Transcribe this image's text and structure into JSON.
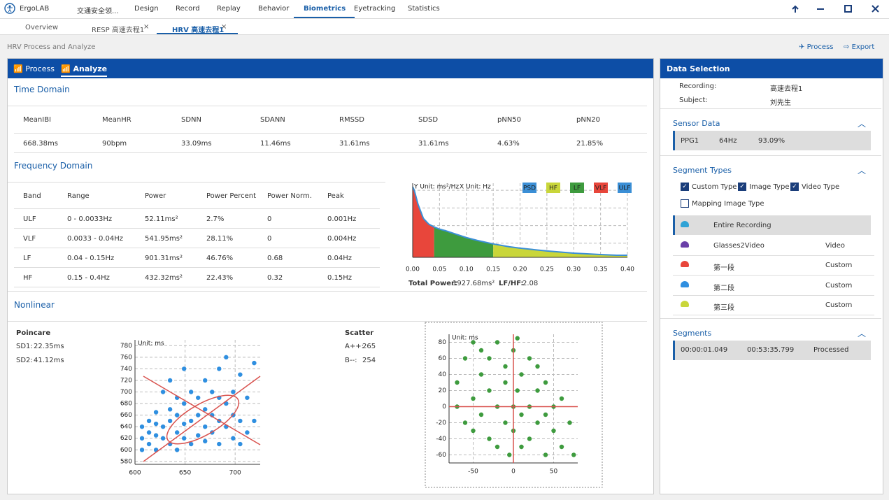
{
  "app": {
    "name": "ErgoLAB",
    "nav": [
      "交通安全领...",
      "Design",
      "Record",
      "Replay",
      "Behavior",
      "Biometrics",
      "Eyetracking",
      "Statistics"
    ],
    "active_nav": 5
  },
  "tabs": {
    "items": [
      "Overview",
      "RESP 高速去程1",
      "HRV 高速去程1"
    ],
    "active": 2
  },
  "breadcrumb": "HRV Process and Analyze",
  "actions": [
    "Process",
    "Export"
  ],
  "panel_tabs": [
    "Process",
    "Analyze"
  ],
  "time_domain": {
    "title": "Time Domain",
    "headers": [
      "MeanIBI",
      "MeanHR",
      "SDNN",
      "SDANN",
      "RMSSD",
      "SDSD",
      "pNN50",
      "pNN20"
    ],
    "values": [
      "668.38ms",
      "90bpm",
      "33.09ms",
      "11.46ms",
      "31.61ms",
      "31.61ms",
      "4.63%",
      "21.85%"
    ]
  },
  "frequency_domain": {
    "title": "Frequency Domain",
    "headers": [
      "Band",
      "Range",
      "Power",
      "Power Percent",
      "Power Norm.",
      "Peak"
    ],
    "rows": [
      [
        "ULF",
        "0 - 0.0033Hz",
        "52.11ms²",
        "2.7%",
        "0",
        "0.001Hz"
      ],
      [
        "VLF",
        "0.0033 - 0.04Hz",
        "541.95ms²",
        "28.11%",
        "0",
        "0.004Hz"
      ],
      [
        "LF",
        "0.04 - 0.15Hz",
        "901.31ms²",
        "46.76%",
        "0.68",
        "0.04Hz"
      ],
      [
        "HF",
        "0.15 - 0.4Hz",
        "432.32ms²",
        "22.43%",
        "0.32",
        "0.15Hz"
      ]
    ]
  },
  "psd_chart": {
    "type": "area",
    "y_unit": "Y Unit: ms²/Hz",
    "x_unit": "X Unit: Hz",
    "legend": [
      {
        "name": "PSD",
        "color": "#3b8fd6"
      },
      {
        "name": "HF",
        "color": "#c9d63a"
      },
      {
        "name": "LF",
        "color": "#3e9b3e"
      },
      {
        "name": "VLF",
        "color": "#e8463b"
      },
      {
        "name": "ULF",
        "color": "#3b8fd6"
      }
    ],
    "x": [
      0,
      0.003,
      0.01,
      0.02,
      0.03,
      0.04,
      0.05,
      0.06,
      0.08,
      0.1,
      0.12,
      0.15,
      0.18,
      0.2,
      0.25,
      0.3,
      0.35,
      0.38,
      0.4
    ],
    "values": [
      100,
      95,
      75,
      55,
      47,
      43,
      40,
      38,
      33,
      28,
      24,
      19,
      15,
      13,
      9,
      6,
      4,
      3,
      3
    ],
    "bands": [
      {
        "legend": 3,
        "range": [
          0,
          0.04
        ]
      },
      {
        "legend": 2,
        "range": [
          0.04,
          0.15
        ]
      },
      {
        "legend": 1,
        "range": [
          0.15,
          0.4
        ]
      }
    ],
    "xlim": [
      0,
      0.4
    ],
    "ylim": [
      0,
      105
    ],
    "xticks": [
      {
        "value": 0,
        "label": "0.00"
      },
      {
        "value": 0.05,
        "label": "0.05"
      },
      {
        "value": 0.1,
        "label": "0.10"
      },
      {
        "value": 0.15,
        "label": "0.15"
      },
      {
        "value": 0.2,
        "label": "0.20"
      },
      {
        "value": 0.25,
        "label": "0.25"
      },
      {
        "value": 0.3,
        "label": "0.30"
      },
      {
        "value": 0.35,
        "label": "0.35"
      },
      {
        "value": 0.4,
        "label": "0.40"
      }
    ],
    "grid_y": [
      20,
      45,
      70,
      95
    ],
    "total_power_label": "Total Power:",
    "total_power": "1927.68ms²",
    "lfhf_label": "LF/HF:",
    "lfhf": "2.08"
  },
  "nonlinear": {
    "title": "Nonlinear"
  },
  "poincare": {
    "type": "scatter",
    "title": "Poincare",
    "stats": [
      {
        "label": "SD1:",
        "value": "22.35ms"
      },
      {
        "label": "SD2:",
        "value": "41.12ms"
      }
    ],
    "unit": "Unit: ms",
    "color": "#2f8fe0",
    "xlim": [
      600,
      725
    ],
    "ylim": [
      575,
      790
    ],
    "xticks": [
      600,
      650,
      700
    ],
    "yticks": [
      580,
      600,
      620,
      640,
      660,
      680,
      700,
      720,
      740,
      760,
      780
    ],
    "points": [
      [
        607,
        600
      ],
      [
        607,
        620
      ],
      [
        607,
        640
      ],
      [
        614,
        610
      ],
      [
        614,
        630
      ],
      [
        614,
        650
      ],
      [
        621,
        600
      ],
      [
        621,
        625
      ],
      [
        621,
        645
      ],
      [
        621,
        665
      ],
      [
        628,
        620
      ],
      [
        628,
        640
      ],
      [
        628,
        700
      ],
      [
        635,
        610
      ],
      [
        635,
        650
      ],
      [
        635,
        670
      ],
      [
        635,
        720
      ],
      [
        642,
        600
      ],
      [
        642,
        630
      ],
      [
        642,
        660
      ],
      [
        642,
        690
      ],
      [
        649,
        620
      ],
      [
        649,
        645
      ],
      [
        649,
        680
      ],
      [
        649,
        740
      ],
      [
        656,
        610
      ],
      [
        656,
        650
      ],
      [
        656,
        700
      ],
      [
        663,
        625
      ],
      [
        663,
        660
      ],
      [
        663,
        690
      ],
      [
        670,
        615
      ],
      [
        670,
        640
      ],
      [
        670,
        670
      ],
      [
        670,
        720
      ],
      [
        677,
        630
      ],
      [
        677,
        660
      ],
      [
        677,
        700
      ],
      [
        684,
        610
      ],
      [
        684,
        650
      ],
      [
        684,
        690
      ],
      [
        684,
        740
      ],
      [
        691,
        640
      ],
      [
        691,
        680
      ],
      [
        691,
        760
      ],
      [
        698,
        620
      ],
      [
        698,
        660
      ],
      [
        698,
        700
      ],
      [
        705,
        610
      ],
      [
        705,
        650
      ],
      [
        705,
        730
      ],
      [
        712,
        630
      ],
      [
        712,
        690
      ],
      [
        719,
        650
      ],
      [
        719,
        750
      ]
    ]
  },
  "scatter": {
    "type": "scatter",
    "title": "Scatter",
    "stats": [
      {
        "label": "A++:",
        "value": "265"
      },
      {
        "label": "B--:",
        "value": "254"
      }
    ],
    "unit": "Unit: ms",
    "color": "#3e9b3e",
    "xlim": [
      -80,
      80
    ],
    "ylim": [
      -70,
      90
    ],
    "xticks": [
      -50,
      0,
      50
    ],
    "yticks": [
      -60,
      -40,
      -20,
      0,
      20,
      40,
      60,
      80
    ],
    "points": [
      [
        -70,
        0
      ],
      [
        -70,
        30
      ],
      [
        -60,
        60
      ],
      [
        -60,
        -20
      ],
      [
        -50,
        80
      ],
      [
        -50,
        10
      ],
      [
        -50,
        -30
      ],
      [
        -40,
        40
      ],
      [
        -40,
        -10
      ],
      [
        -40,
        70
      ],
      [
        -30,
        20
      ],
      [
        -30,
        -40
      ],
      [
        -30,
        60
      ],
      [
        -20,
        0
      ],
      [
        -20,
        -50
      ],
      [
        -20,
        80
      ],
      [
        -10,
        30
      ],
      [
        -10,
        -20
      ],
      [
        -10,
        50
      ],
      [
        -5,
        -60
      ],
      [
        0,
        0
      ],
      [
        0,
        70
      ],
      [
        0,
        -30
      ],
      [
        5,
        20
      ],
      [
        5,
        85
      ],
      [
        10,
        -10
      ],
      [
        10,
        40
      ],
      [
        10,
        -50
      ],
      [
        20,
        0
      ],
      [
        20,
        60
      ],
      [
        20,
        -40
      ],
      [
        30,
        20
      ],
      [
        30,
        -20
      ],
      [
        30,
        50
      ],
      [
        40,
        -10
      ],
      [
        40,
        30
      ],
      [
        40,
        -60
      ],
      [
        50,
        0
      ],
      [
        50,
        -30
      ],
      [
        60,
        10
      ],
      [
        60,
        -50
      ],
      [
        70,
        -20
      ],
      [
        75,
        -60
      ]
    ]
  },
  "data_selection": {
    "title": "Data Selection",
    "info": [
      {
        "label": "Recording:",
        "value": "高速去程1"
      },
      {
        "label": "Subject:",
        "value": "刘先生"
      }
    ],
    "sensor": {
      "title": "Sensor Data",
      "cells": [
        "PPG1",
        "64Hz",
        "93.09%"
      ]
    },
    "segment_types": {
      "title": "Segment Types",
      "checks": [
        {
          "label": "Custom Type",
          "checked": true
        },
        {
          "label": "Image Type",
          "checked": true
        },
        {
          "label": "Video Type",
          "checked": true
        },
        {
          "label": "Mapping Image Type",
          "checked": false
        }
      ],
      "items": [
        {
          "name": "Entire Recording",
          "color": "#2fa3d6"
        },
        {
          "name": "Glasses2Video",
          "type": "Video",
          "color": "#6a3fa8"
        },
        {
          "name": "第一段",
          "type": "Custom",
          "color": "#e8463b"
        },
        {
          "name": "第二段",
          "type": "Custom",
          "color": "#2f8fe0"
        },
        {
          "name": "第三段",
          "type": "Custom",
          "color": "#c9d63a"
        }
      ],
      "selected": 0
    },
    "segments": {
      "title": "Segments",
      "cells": [
        "00:00:01.049",
        "00:53:35.799",
        "Processed"
      ]
    }
  }
}
